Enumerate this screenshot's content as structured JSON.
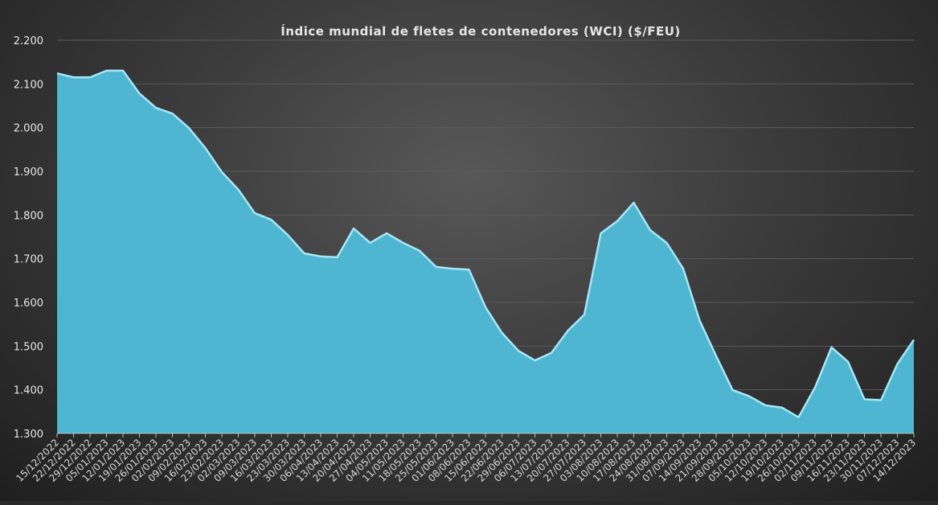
{
  "chart_data": {
    "type": "area",
    "title": "Índice mundial de fletes de contenedores (WCI) ($/FEU)",
    "xlabel": "",
    "ylabel": "",
    "ylim": [
      1300,
      2200
    ],
    "y_ticks": [
      1300,
      1400,
      1500,
      1600,
      1700,
      1800,
      1900,
      2000,
      2100,
      2200
    ],
    "y_tick_labels": [
      "1.300",
      "1.400",
      "1.500",
      "1.600",
      "1.700",
      "1.800",
      "1.900",
      "2.000",
      "2.100",
      "2.200"
    ],
    "grid": true,
    "legend": "none",
    "colors": {
      "fill": "#4fb6d2",
      "edge": "#a6e6f5",
      "grid": "#5a5a5a"
    },
    "x": [
      "15/12/2022",
      "22/12/2022",
      "29/12/2022",
      "05/01/2023",
      "12/01/2023",
      "19/01/2023",
      "26/01/2023",
      "02/02/2023",
      "09/02/2023",
      "16/02/2023",
      "23/02/2023",
      "02/03/2023",
      "09/03/2023",
      "16/03/2023",
      "23/03/2023",
      "30/03/2023",
      "06/04/2023",
      "13/04/2023",
      "20/04/2023",
      "27/04/2023",
      "04/05/2023",
      "11/05/2023",
      "18/05/2023",
      "25/05/2023",
      "01/06/2023",
      "08/06/2023",
      "15/06/2023",
      "22/06/2023",
      "29/06/2023",
      "06/07/2023",
      "13/07/2023",
      "20/07/2023",
      "27/07/2023",
      "03/08/2023",
      "10/08/2023",
      "17/08/2023",
      "24/08/2023",
      "31/08/2023",
      "07/09/2023",
      "14/09/2023",
      "21/09/2023",
      "28/09/2023",
      "05/10/2023",
      "12/10/2023",
      "19/10/2023",
      "26/10/2023",
      "02/11/2023",
      "09/11/2023",
      "16/11/2023",
      "23/11/2023",
      "30/11/2023",
      "07/12/2023",
      "14/12/2023"
    ],
    "values": [
      2126,
      2117,
      2117,
      2132,
      2132,
      2080,
      2047,
      2034,
      2001,
      1955,
      1900,
      1860,
      1806,
      1791,
      1756,
      1714,
      1707,
      1705,
      1771,
      1738,
      1760,
      1738,
      1720,
      1683,
      1679,
      1677,
      1591,
      1532,
      1491,
      1469,
      1486,
      1537,
      1574,
      1760,
      1788,
      1830,
      1767,
      1738,
      1679,
      1560,
      1479,
      1401,
      1387,
      1366,
      1361,
      1339,
      1407,
      1499,
      1466,
      1380,
      1378,
      1461,
      1516
    ]
  }
}
